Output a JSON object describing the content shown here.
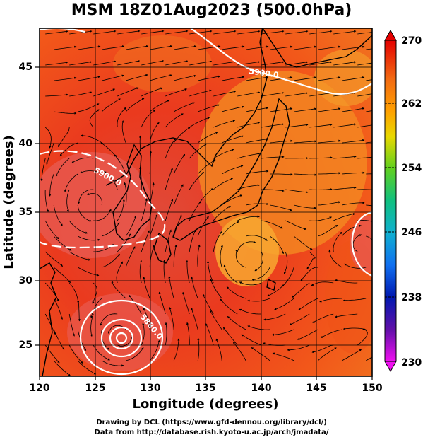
{
  "title": "MSM 18Z01Aug2023 (500.0hPa)",
  "map": {
    "xlabel": "Longitude (degrees)",
    "ylabel": "Latitude  (degrees)",
    "x_ticks": [
      "120",
      "125",
      "130",
      "135",
      "140",
      "145",
      "150"
    ],
    "y_ticks": [
      "25",
      "30",
      "35",
      "40",
      "45"
    ],
    "contour_labels": [
      "5900.0",
      "5900.0",
      "5880.0"
    ]
  },
  "colorbar": {
    "labels": [
      "270",
      "262",
      "254",
      "246",
      "238",
      "230"
    ],
    "colors": [
      "#e40000",
      "#f06010",
      "#ffa000",
      "#e8d000",
      "#60d020",
      "#10c080",
      "#10b0c8",
      "#1060e8",
      "#0020c0",
      "#4010a0",
      "#b010b0",
      "#f010f0"
    ]
  },
  "credit": {
    "line1": "Drawing by DCL (https://www.gfd-dennou.org/library/dcl/)",
    "line2": "Data from http://database.rish.kyoto-u.ac.jp/arch/jmadata/"
  }
}
